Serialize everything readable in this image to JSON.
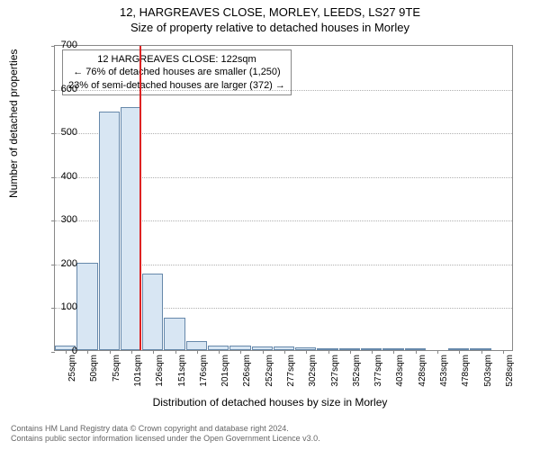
{
  "title_main": "12, HARGREAVES CLOSE, MORLEY, LEEDS, LS27 9TE",
  "title_sub": "Size of property relative to detached houses in Morley",
  "y_axis_label": "Number of detached properties",
  "x_axis_label": "Distribution of detached houses by size in Morley",
  "chart": {
    "type": "histogram",
    "ylim": [
      0,
      700
    ],
    "ytick_step": 100,
    "yticks": [
      0,
      100,
      200,
      300,
      400,
      500,
      600,
      700
    ],
    "x_categories": [
      "25sqm",
      "50sqm",
      "75sqm",
      "101sqm",
      "126sqm",
      "151sqm",
      "176sqm",
      "201sqm",
      "226sqm",
      "252sqm",
      "277sqm",
      "302sqm",
      "327sqm",
      "352sqm",
      "377sqm",
      "403sqm",
      "428sqm",
      "453sqm",
      "478sqm",
      "503sqm",
      "528sqm"
    ],
    "bar_values": [
      10,
      200,
      545,
      555,
      175,
      75,
      20,
      10,
      10,
      8,
      8,
      6,
      5,
      4,
      3,
      2,
      2,
      0,
      1,
      1,
      0
    ],
    "bar_fill": "#d8e6f3",
    "bar_stroke": "#6688aa",
    "background_color": "#ffffff",
    "grid_color": "#b0b0b0",
    "border_color": "#888888",
    "reference_line": {
      "x_index_after": 3,
      "fraction_into_bin": 0.85,
      "color": "#dd2222",
      "width": 2
    },
    "annotation": {
      "lines": [
        "12 HARGREAVES CLOSE: 122sqm",
        "← 76% of detached houses are smaller (1,250)",
        "23% of semi-detached houses are larger (372) →"
      ],
      "border_color": "#888888",
      "background": "#ffffff",
      "fontsize": 11
    }
  },
  "footer": {
    "line1": "Contains HM Land Registry data © Crown copyright and database right 2024.",
    "line2": "Contains public sector information licensed under the Open Government Licence v3.0."
  }
}
